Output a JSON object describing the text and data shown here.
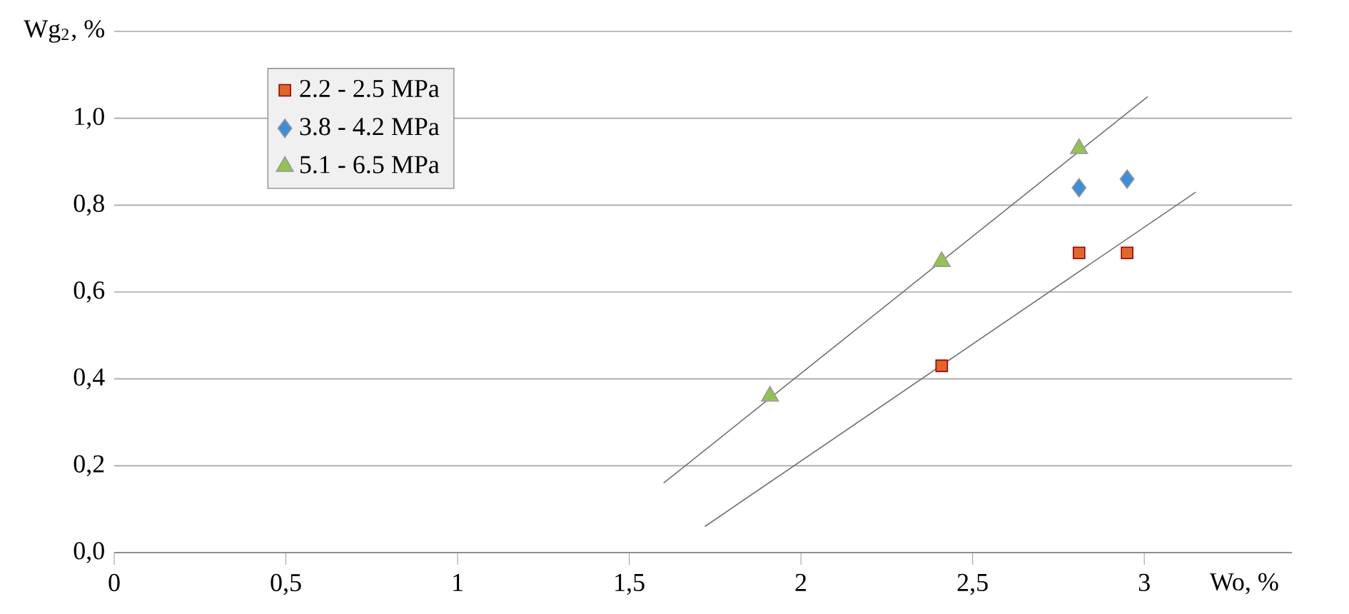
{
  "chart_data": {
    "type": "scatter",
    "xlabel": "Wo, %",
    "ylabel": "Wg$_{2}$, %",
    "xlim": [
      0,
      3.43
    ],
    "ylim": [
      0,
      1.2
    ],
    "xticks": [
      0,
      {
        "value": 0.5,
        "label": "0,5"
      },
      1,
      {
        "value": 1.5,
        "label": "1,5"
      },
      2,
      {
        "value": 2.5,
        "label": "2,5"
      },
      3
    ],
    "yticks": [
      {
        "value": 0,
        "label": "0,0"
      },
      {
        "value": 0.2,
        "label": "0,2"
      },
      {
        "value": 0.4,
        "label": "0,4"
      },
      {
        "value": 0.6,
        "label": "0,6"
      },
      {
        "value": 0.8,
        "label": "0,8"
      },
      {
        "value": 1.0,
        "label": "1,0"
      },
      {
        "value": 1.2,
        "label": null
      }
    ],
    "grid": "y",
    "legend": "top left",
    "series": [
      {
        "name": "2.2 - 2.5 MPa",
        "color": "#e2662b",
        "marker": "square",
        "x": [
          2.41,
          2.81,
          2.95
        ],
        "values": [
          0.43,
          0.69,
          0.69
        ]
      },
      {
        "name": "3.8 - 4.2 MPa",
        "color": "#3b8fd8",
        "marker": "diamond",
        "x": [
          2.81,
          2.95
        ],
        "values": [
          0.84,
          0.86
        ]
      },
      {
        "name": "5.1 - 6.5 MPa",
        "color": "#92c350",
        "marker": "triangle",
        "x": [
          1.91,
          2.41,
          2.81
        ],
        "values": [
          0.36,
          0.67,
          0.93
        ]
      },
      {
        "type": "line",
        "color": "#707070",
        "marker": "none",
        "line_style": "solid",
        "x": [
          1.6,
          3.01
        ],
        "values": [
          0.16,
          1.05
        ]
      },
      {
        "type": "line",
        "color": "#707070",
        "marker": "none",
        "line_style": "solid",
        "x": [
          1.72,
          3.15
        ],
        "values": [
          0.06,
          0.83
        ]
      }
    ]
  }
}
